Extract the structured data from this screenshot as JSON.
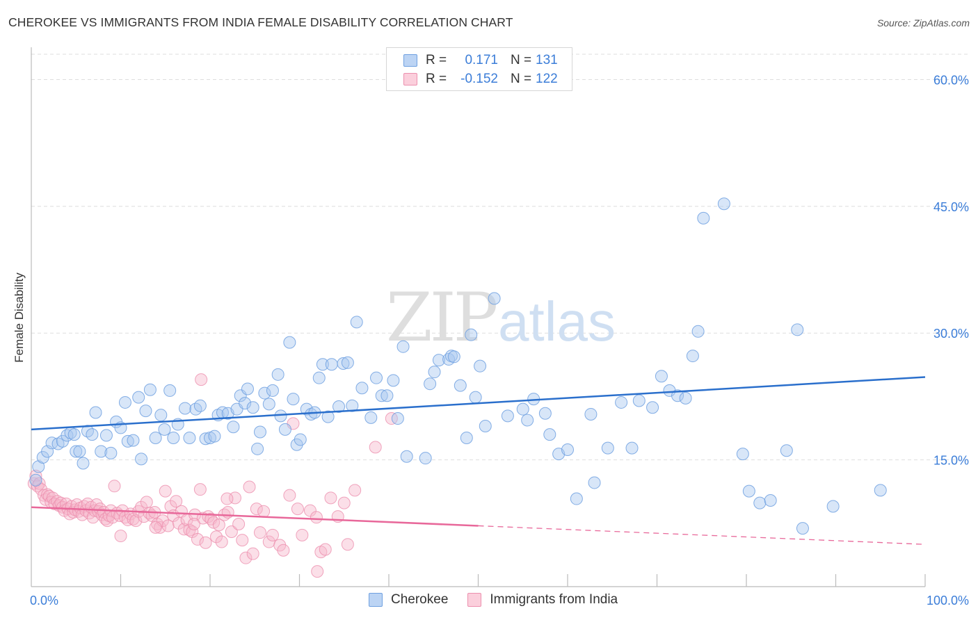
{
  "title": "CHEROKEE VS IMMIGRANTS FROM INDIA FEMALE DISABILITY CORRELATION CHART",
  "source": "Source: ZipAtlas.com",
  "watermark": {
    "zip": "ZIP",
    "atlas": "atlas"
  },
  "colors": {
    "blue_fill": "#a9c8f0",
    "blue_stroke": "#6fa0e0",
    "blue_line": "#2a6fcc",
    "pink_fill": "#f7b9cc",
    "pink_stroke": "#ec8fae",
    "pink_line": "#e8689a",
    "axis_text": "#3b7dd8",
    "grid": "#dddddd"
  },
  "legend": [
    {
      "r_label": "R =",
      "r_value": " 0.171",
      "n_label": "N =",
      "n_value": "131"
    },
    {
      "r_label": "R =",
      "r_value": "-0.152",
      "n_label": "N =",
      "n_value": "122"
    }
  ],
  "bottom_legend": [
    "Cherokee",
    "Immigrants from India"
  ],
  "chart_data": {
    "type": "scatter",
    "title": "CHEROKEE VS IMMIGRANTS FROM INDIA FEMALE DISABILITY CORRELATION CHART",
    "xlabel": "",
    "ylabel": "Female Disability",
    "xlim": [
      0,
      100
    ],
    "ylim": [
      0,
      63
    ],
    "x_tick_labels": [
      "0.0%",
      "100.0%"
    ],
    "y_ticks": [
      15,
      30,
      45,
      60
    ],
    "y_tick_labels": [
      "15.0%",
      "30.0%",
      "45.0%",
      "60.0%"
    ],
    "grid": true,
    "legend_position": "top-center",
    "series": [
      {
        "name": "Cherokee",
        "r": 0.171,
        "n": 131,
        "trend": {
          "x": [
            0,
            100
          ],
          "y": [
            18.6,
            24.8
          ],
          "solid_until": 100
        },
        "points": [
          [
            0.5,
            12.6
          ],
          [
            0.8,
            14.2
          ],
          [
            1.3,
            15.3
          ],
          [
            1.8,
            16.0
          ],
          [
            2.3,
            17.0
          ],
          [
            3.0,
            16.9
          ],
          [
            3.5,
            17.2
          ],
          [
            4.0,
            17.9
          ],
          [
            4.4,
            18.2
          ],
          [
            4.8,
            18.0
          ],
          [
            5.0,
            16.0
          ],
          [
            5.4,
            16.0
          ],
          [
            5.8,
            14.6
          ],
          [
            6.3,
            18.4
          ],
          [
            6.8,
            18.0
          ],
          [
            7.2,
            20.6
          ],
          [
            7.8,
            16.0
          ],
          [
            8.4,
            17.9
          ],
          [
            8.9,
            15.8
          ],
          [
            9.5,
            19.5
          ],
          [
            10.0,
            18.8
          ],
          [
            10.5,
            21.8
          ],
          [
            10.8,
            17.2
          ],
          [
            11.4,
            17.3
          ],
          [
            12.0,
            22.4
          ],
          [
            12.3,
            15.1
          ],
          [
            12.8,
            20.8
          ],
          [
            13.3,
            23.3
          ],
          [
            13.9,
            17.6
          ],
          [
            14.5,
            20.3
          ],
          [
            14.9,
            18.6
          ],
          [
            15.5,
            23.2
          ],
          [
            15.9,
            17.6
          ],
          [
            16.4,
            19.2
          ],
          [
            17.2,
            21.1
          ],
          [
            17.7,
            17.6
          ],
          [
            18.4,
            21.0
          ],
          [
            18.9,
            21.4
          ],
          [
            19.5,
            17.5
          ],
          [
            20.0,
            17.6
          ],
          [
            20.5,
            17.8
          ],
          [
            20.9,
            20.3
          ],
          [
            21.4,
            20.6
          ],
          [
            22.0,
            20.5
          ],
          [
            22.6,
            18.9
          ],
          [
            23.0,
            21.0
          ],
          [
            23.4,
            22.6
          ],
          [
            23.9,
            21.7
          ],
          [
            24.2,
            23.4
          ],
          [
            24.8,
            21.2
          ],
          [
            25.3,
            16.3
          ],
          [
            25.6,
            18.3
          ],
          [
            26.1,
            22.9
          ],
          [
            26.6,
            21.6
          ],
          [
            27.0,
            23.2
          ],
          [
            27.6,
            25.1
          ],
          [
            27.9,
            20.2
          ],
          [
            28.4,
            18.6
          ],
          [
            28.9,
            28.9
          ],
          [
            29.3,
            22.2
          ],
          [
            29.7,
            16.8
          ],
          [
            30.1,
            17.4
          ],
          [
            30.8,
            21.0
          ],
          [
            31.3,
            20.4
          ],
          [
            31.7,
            20.6
          ],
          [
            32.2,
            24.7
          ],
          [
            32.6,
            26.3
          ],
          [
            33.2,
            20.1
          ],
          [
            33.6,
            26.3
          ],
          [
            34.4,
            21.3
          ],
          [
            34.9,
            26.4
          ],
          [
            35.4,
            26.5
          ],
          [
            35.9,
            21.4
          ],
          [
            36.4,
            31.3
          ],
          [
            37.0,
            23.5
          ],
          [
            38.0,
            20.0
          ],
          [
            38.6,
            24.7
          ],
          [
            39.2,
            22.6
          ],
          [
            39.8,
            22.6
          ],
          [
            40.5,
            24.4
          ],
          [
            41.0,
            19.9
          ],
          [
            41.6,
            28.4
          ],
          [
            42.0,
            15.4
          ],
          [
            44.1,
            15.2
          ],
          [
            44.6,
            24.0
          ],
          [
            45.1,
            25.4
          ],
          [
            45.6,
            26.8
          ],
          [
            46.7,
            26.9
          ],
          [
            47.0,
            27.3
          ],
          [
            47.3,
            27.2
          ],
          [
            48.0,
            23.8
          ],
          [
            48.7,
            17.6
          ],
          [
            49.2,
            29.8
          ],
          [
            49.7,
            22.4
          ],
          [
            50.2,
            26.1
          ],
          [
            50.8,
            19.0
          ],
          [
            51.8,
            34.1
          ],
          [
            53.3,
            20.2
          ],
          [
            55.0,
            21.0
          ],
          [
            55.5,
            19.7
          ],
          [
            56.2,
            22.2
          ],
          [
            57.5,
            20.5
          ],
          [
            58.0,
            18.0
          ],
          [
            59.0,
            15.7
          ],
          [
            60.0,
            16.2
          ],
          [
            61.0,
            10.4
          ],
          [
            62.6,
            20.4
          ],
          [
            63.0,
            12.3
          ],
          [
            64.5,
            16.4
          ],
          [
            66.0,
            21.8
          ],
          [
            67.2,
            16.4
          ],
          [
            68.0,
            22.0
          ],
          [
            69.5,
            21.2
          ],
          [
            70.5,
            24.9
          ],
          [
            71.4,
            23.2
          ],
          [
            72.3,
            22.6
          ],
          [
            73.2,
            22.3
          ],
          [
            74.0,
            27.3
          ],
          [
            74.6,
            30.2
          ],
          [
            75.2,
            43.6
          ],
          [
            77.5,
            45.3
          ],
          [
            79.6,
            15.7
          ],
          [
            80.3,
            11.3
          ],
          [
            81.5,
            9.9
          ],
          [
            82.7,
            10.2
          ],
          [
            84.5,
            16.1
          ],
          [
            85.7,
            30.4
          ],
          [
            86.3,
            6.9
          ],
          [
            89.7,
            9.5
          ],
          [
            95.0,
            11.4
          ]
        ]
      },
      {
        "name": "Immigrants from India",
        "r": -0.152,
        "n": 122,
        "trend": {
          "x": [
            0,
            100
          ],
          "y": [
            9.4,
            5.0
          ],
          "solid_until": 50
        },
        "points": [
          [
            0.3,
            12.2
          ],
          [
            0.5,
            13.1
          ],
          [
            0.7,
            11.9
          ],
          [
            0.9,
            12.2
          ],
          [
            1.1,
            11.5
          ],
          [
            1.4,
            10.8
          ],
          [
            1.6,
            10.3
          ],
          [
            1.8,
            10.9
          ],
          [
            2.0,
            10.7
          ],
          [
            2.2,
            10.0
          ],
          [
            2.4,
            10.5
          ],
          [
            2.6,
            9.8
          ],
          [
            2.9,
            10.1
          ],
          [
            3.1,
            9.6
          ],
          [
            3.3,
            9.9
          ],
          [
            3.5,
            9.4
          ],
          [
            3.7,
            9.0
          ],
          [
            3.9,
            9.8
          ],
          [
            4.1,
            9.2
          ],
          [
            4.3,
            8.6
          ],
          [
            4.5,
            9.5
          ],
          [
            4.7,
            8.8
          ],
          [
            4.9,
            9.1
          ],
          [
            5.1,
            9.7
          ],
          [
            5.3,
            8.9
          ],
          [
            5.5,
            9.3
          ],
          [
            5.7,
            8.5
          ],
          [
            5.9,
            9.5
          ],
          [
            6.1,
            9.0
          ],
          [
            6.3,
            9.8
          ],
          [
            6.5,
            8.7
          ],
          [
            6.7,
            9.4
          ],
          [
            6.9,
            8.2
          ],
          [
            7.1,
            9.0
          ],
          [
            7.3,
            9.7
          ],
          [
            7.5,
            8.9
          ],
          [
            7.7,
            9.2
          ],
          [
            7.9,
            8.5
          ],
          [
            8.1,
            8.8
          ],
          [
            8.3,
            8.0
          ],
          [
            8.5,
            7.8
          ],
          [
            8.7,
            8.4
          ],
          [
            8.9,
            9.0
          ],
          [
            9.1,
            8.2
          ],
          [
            9.3,
            11.9
          ],
          [
            9.6,
            8.7
          ],
          [
            9.9,
            8.4
          ],
          [
            10.2,
            9.0
          ],
          [
            10.5,
            8.2
          ],
          [
            10.8,
            7.9
          ],
          [
            11.1,
            8.6
          ],
          [
            11.4,
            8.0
          ],
          [
            11.7,
            7.8
          ],
          [
            12.0,
            8.9
          ],
          [
            12.3,
            9.4
          ],
          [
            12.6,
            8.3
          ],
          [
            12.9,
            10.0
          ],
          [
            13.2,
            8.7
          ],
          [
            13.5,
            8.4
          ],
          [
            13.8,
            8.8
          ],
          [
            14.1,
            7.4
          ],
          [
            14.4,
            7.0
          ],
          [
            14.7,
            7.8
          ],
          [
            15.0,
            11.3
          ],
          [
            15.3,
            7.2
          ],
          [
            15.6,
            9.5
          ],
          [
            15.9,
            8.4
          ],
          [
            16.2,
            10.1
          ],
          [
            16.5,
            7.5
          ],
          [
            16.8,
            8.9
          ],
          [
            17.1,
            6.8
          ],
          [
            17.4,
            7.9
          ],
          [
            17.7,
            6.7
          ],
          [
            18.0,
            6.5
          ],
          [
            18.3,
            8.5
          ],
          [
            18.6,
            5.6
          ],
          [
            18.9,
            11.5
          ],
          [
            19.2,
            8.1
          ],
          [
            19.5,
            5.2
          ],
          [
            19.8,
            8.3
          ],
          [
            20.1,
            8.0
          ],
          [
            20.4,
            7.6
          ],
          [
            20.7,
            5.9
          ],
          [
            21.0,
            7.3
          ],
          [
            21.3,
            5.3
          ],
          [
            21.6,
            8.5
          ],
          [
            22.0,
            8.8
          ],
          [
            22.4,
            6.5
          ],
          [
            22.8,
            10.5
          ],
          [
            23.2,
            7.4
          ],
          [
            23.6,
            5.5
          ],
          [
            24.0,
            3.4
          ],
          [
            24.4,
            11.8
          ],
          [
            24.8,
            3.9
          ],
          [
            25.2,
            9.2
          ],
          [
            25.6,
            6.4
          ],
          [
            26.0,
            8.9
          ],
          [
            26.6,
            5.3
          ],
          [
            27.0,
            6.1
          ],
          [
            27.8,
            4.9
          ],
          [
            28.2,
            4.3
          ],
          [
            28.9,
            10.8
          ],
          [
            29.3,
            19.3
          ],
          [
            29.8,
            9.2
          ],
          [
            30.3,
            6.1
          ],
          [
            31.2,
            9.0
          ],
          [
            31.9,
            8.2
          ],
          [
            32.4,
            4.1
          ],
          [
            32.9,
            4.4
          ],
          [
            33.5,
            10.5
          ],
          [
            34.3,
            8.3
          ],
          [
            35.0,
            9.9
          ],
          [
            35.4,
            5.0
          ],
          [
            36.2,
            11.4
          ],
          [
            38.5,
            16.5
          ],
          [
            40.3,
            19.9
          ],
          [
            13.9,
            7.0
          ],
          [
            19.0,
            24.5
          ],
          [
            10.0,
            6.0
          ],
          [
            32.0,
            1.8
          ],
          [
            21.9,
            10.4
          ],
          [
            18.2,
            7.4
          ]
        ]
      }
    ]
  }
}
